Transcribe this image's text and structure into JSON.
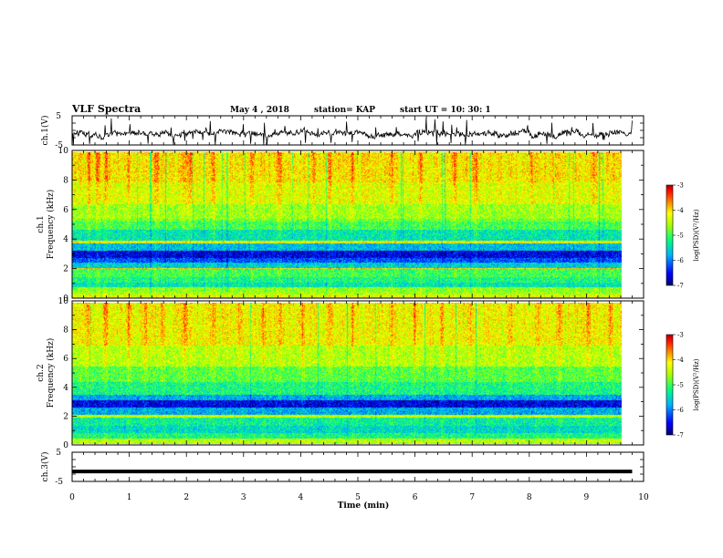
{
  "header": {
    "title": "VLF Spectra",
    "date": "May 4  , 2018",
    "station": "station= KAP",
    "start": "start  UT  =   10: 30: 1"
  },
  "chart_data": [
    {
      "type": "line",
      "name": "ch.1 (V) waveform",
      "ylabel": "ch.1(V)",
      "ylim": [
        -5,
        5
      ],
      "yticks": [
        "5",
        "-5"
      ],
      "x_range_min": [
        0,
        10
      ],
      "data_until_min": 9.8,
      "approx_level": -1.0,
      "approx_amplitude": 1.6
    },
    {
      "type": "heatmap",
      "name": "ch.1 spectrogram",
      "ylabel": "ch.1\nFrequency  (kHz)",
      "ylabel_lines": [
        "ch.1",
        "Frequency  (kHz)"
      ],
      "ylim": [
        0,
        10
      ],
      "yticks": [
        "0",
        "2",
        "4",
        "6",
        "8",
        "10"
      ],
      "x_range_min": [
        0,
        10
      ],
      "data_until_min": 9.8,
      "frequency_bands_khz": [
        {
          "from": 0.0,
          "to": 0.3,
          "level": -4.3
        },
        {
          "from": 0.3,
          "to": 0.5,
          "level": -4.6
        },
        {
          "from": 0.5,
          "to": 0.8,
          "level": -4.7
        },
        {
          "from": 0.8,
          "to": 1.1,
          "level": -5.4
        },
        {
          "from": 1.1,
          "to": 1.5,
          "level": -5.2
        },
        {
          "from": 1.5,
          "to": 2.0,
          "level": -5.0
        },
        {
          "from": 2.0,
          "to": 2.1,
          "level": -4.0
        },
        {
          "from": 2.1,
          "to": 2.5,
          "level": -5.6
        },
        {
          "from": 2.5,
          "to": 2.8,
          "level": -6.2
        },
        {
          "from": 2.8,
          "to": 3.3,
          "level": -6.6
        },
        {
          "from": 3.3,
          "to": 3.8,
          "level": -5.7
        },
        {
          "from": 3.8,
          "to": 3.95,
          "level": -4.2
        },
        {
          "from": 3.95,
          "to": 4.7,
          "level": -5.4
        },
        {
          "from": 4.7,
          "to": 5.3,
          "level": -5.0
        },
        {
          "from": 5.3,
          "to": 5.5,
          "level": -4.8
        },
        {
          "from": 5.5,
          "to": 6.5,
          "level": -4.6
        },
        {
          "from": 6.5,
          "to": 8.0,
          "level": -4.3
        },
        {
          "from": 8.0,
          "to": 10.0,
          "level": -4.1
        }
      ],
      "bright_bursts_min": [
        0.3,
        0.45,
        0.6,
        1.0,
        1.5,
        2.0,
        2.1,
        2.5,
        3.2,
        3.7,
        4.3,
        4.6,
        5.0,
        5.7,
        6.2,
        6.8,
        7.2,
        8.2,
        8.6,
        9.3
      ]
    },
    {
      "type": "heatmap",
      "name": "ch.2 spectrogram",
      "ylabel": "ch.2\nFrequency  (kHz)",
      "ylabel_lines": [
        "ch.2",
        "Frequency  (kHz)"
      ],
      "ylim": [
        0,
        10
      ],
      "yticks": [
        "0",
        "2",
        "4",
        "6",
        "8",
        "10"
      ],
      "x_range_min": [
        0,
        10
      ],
      "data_until_min": 9.8,
      "frequency_bands_khz": [
        {
          "from": 0.0,
          "to": 0.4,
          "level": -4.5
        },
        {
          "from": 0.4,
          "to": 0.8,
          "level": -5.2
        },
        {
          "from": 0.8,
          "to": 1.3,
          "level": -5.5
        },
        {
          "from": 1.3,
          "to": 1.9,
          "level": -5.3
        },
        {
          "from": 1.9,
          "to": 2.1,
          "level": -4.4
        },
        {
          "from": 2.1,
          "to": 2.6,
          "level": -5.8
        },
        {
          "from": 2.6,
          "to": 3.1,
          "level": -6.6
        },
        {
          "from": 3.1,
          "to": 3.5,
          "level": -5.8
        },
        {
          "from": 3.5,
          "to": 4.4,
          "level": -5.2
        },
        {
          "from": 4.4,
          "to": 5.5,
          "level": -4.9
        },
        {
          "from": 5.5,
          "to": 7.0,
          "level": -4.5
        },
        {
          "from": 7.0,
          "to": 10.0,
          "level": -4.2
        }
      ],
      "bright_bursts_min": [
        0.3,
        0.6,
        1.0,
        1.3,
        1.6,
        2.0,
        2.5,
        3.0,
        3.4,
        3.7,
        4.1,
        4.6,
        5.0,
        5.7,
        6.1,
        6.6,
        7.1,
        7.8,
        8.3,
        8.7,
        9.2,
        9.6
      ]
    },
    {
      "type": "line",
      "name": "ch.3 (V) waveform",
      "ylabel": "ch.3(V)",
      "ylim": [
        -5,
        5
      ],
      "yticks": [
        "5",
        "-5"
      ],
      "x_range_min": [
        0,
        10
      ],
      "data_until_min": 9.8,
      "approx_level": -1.6,
      "approx_amplitude": 0.1
    }
  ],
  "xaxis": {
    "label": "Time  (min)",
    "ticks": [
      "0",
      "1",
      "2",
      "3",
      "4",
      "5",
      "6",
      "7",
      "8",
      "9",
      "10"
    ]
  },
  "colorbars": [
    {
      "name": "ch.1 colorbar",
      "label": "log(PSD)(V²/Hz)",
      "range": [
        -7,
        -3
      ],
      "ticks": [
        "-3",
        "-4",
        "-5",
        "-6",
        "-7"
      ]
    },
    {
      "name": "ch.2 colorbar",
      "label": "log(PSD)(V²/Hz)",
      "range": [
        -7,
        -3
      ],
      "ticks": [
        "-3",
        "-4",
        "-5",
        "-6",
        "-7"
      ]
    }
  ],
  "colors": {
    "scale": [
      "#000080",
      "#0000ff",
      "#00c8ff",
      "#00ff80",
      "#b0ff00",
      "#ffff00",
      "#ff8000",
      "#ff0000",
      "#a00000"
    ],
    "waveform": "#000000",
    "axes": "#000000"
  }
}
